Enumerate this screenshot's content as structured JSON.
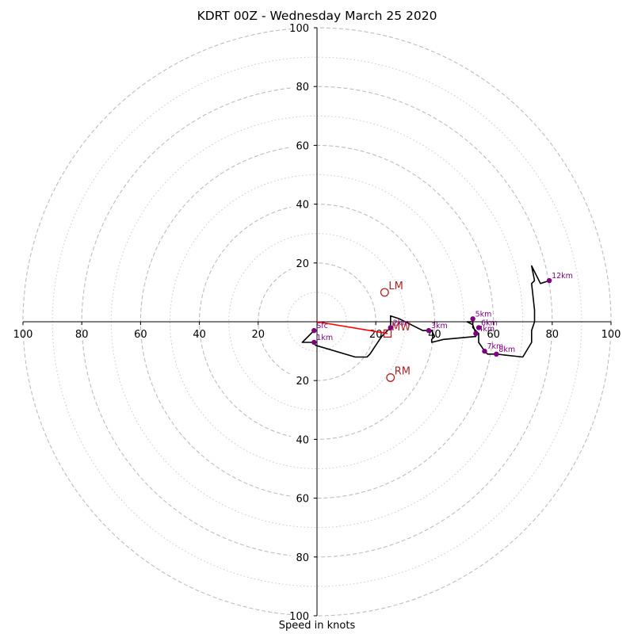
{
  "chart_data": {
    "type": "hodograph",
    "title": "KDRT 00Z - Wednesday March 25 2020",
    "xlabel": "Speed in knots",
    "max_speed": 100,
    "major_rings": [
      20,
      40,
      60,
      80,
      100
    ],
    "minor_rings": [
      10,
      30,
      50,
      70,
      90
    ],
    "tick_labels": [
      "100",
      "80",
      "60",
      "40",
      "20",
      "20",
      "40",
      "60",
      "80",
      "100"
    ],
    "axis_tick_values": [
      -100,
      -80,
      -60,
      -40,
      -20,
      20,
      40,
      60,
      80,
      100
    ],
    "hodograph_color": "#000000",
    "marker_color": "#800080",
    "storm_color": "#b22222",
    "mean_wind_line_color": "#ff0000",
    "profile": [
      [
        -1,
        -3
      ],
      [
        -5,
        -7
      ],
      [
        -1,
        -7
      ],
      [
        -0.5,
        -8
      ],
      [
        13,
        -12
      ],
      [
        17,
        -12
      ],
      [
        18,
        -11
      ],
      [
        22,
        -5
      ],
      [
        24,
        -3
      ],
      [
        25,
        -2
      ],
      [
        25,
        2
      ],
      [
        28,
        1
      ],
      [
        32,
        -1
      ],
      [
        36,
        -3
      ],
      [
        38,
        -3
      ],
      [
        39,
        -3
      ],
      [
        40,
        -5
      ],
      [
        39,
        -6
      ],
      [
        39,
        -7
      ],
      [
        43,
        -6
      ],
      [
        54,
        -5
      ],
      [
        54,
        -4
      ],
      [
        53,
        -1
      ],
      [
        51,
        0
      ],
      [
        53,
        0
      ],
      [
        53,
        -2
      ],
      [
        55,
        -4
      ],
      [
        55,
        -7
      ],
      [
        57,
        -10
      ],
      [
        58,
        -11
      ],
      [
        61,
        -11
      ],
      [
        70,
        -12
      ],
      [
        73,
        -7
      ],
      [
        73,
        -3
      ],
      [
        74,
        0
      ],
      [
        74,
        4
      ],
      [
        73,
        13
      ],
      [
        74,
        14
      ],
      [
        73,
        19
      ],
      [
        76,
        13
      ],
      [
        79,
        14
      ]
    ],
    "height_markers": [
      {
        "label": "Sfc",
        "u": -1,
        "v": -3
      },
      {
        "label": "1km",
        "u": -1,
        "v": -7
      },
      {
        "label": "2km",
        "u": 25,
        "v": -2
      },
      {
        "label": "3km",
        "u": 38,
        "v": -3
      },
      {
        "label": "5km",
        "u": 53,
        "v": 1
      },
      {
        "label": "6km",
        "u": 55,
        "v": -2
      },
      {
        "label": "4km",
        "u": 54,
        "v": -4
      },
      {
        "label": "7km",
        "u": 57,
        "v": -10
      },
      {
        "label": "8km",
        "u": 61,
        "v": -11
      },
      {
        "label": "12km",
        "u": 79,
        "v": 14
      }
    ],
    "storm_motion": [
      {
        "label": "LM",
        "u": 23,
        "v": 10,
        "marker": "circle"
      },
      {
        "label": "RM",
        "u": 25,
        "v": -19,
        "marker": "circle"
      },
      {
        "label": "MW",
        "u": 24,
        "v": -4,
        "marker": "square"
      }
    ],
    "mean_wind_line": {
      "from": [
        0,
        0
      ],
      "to": [
        24,
        -4
      ]
    }
  }
}
